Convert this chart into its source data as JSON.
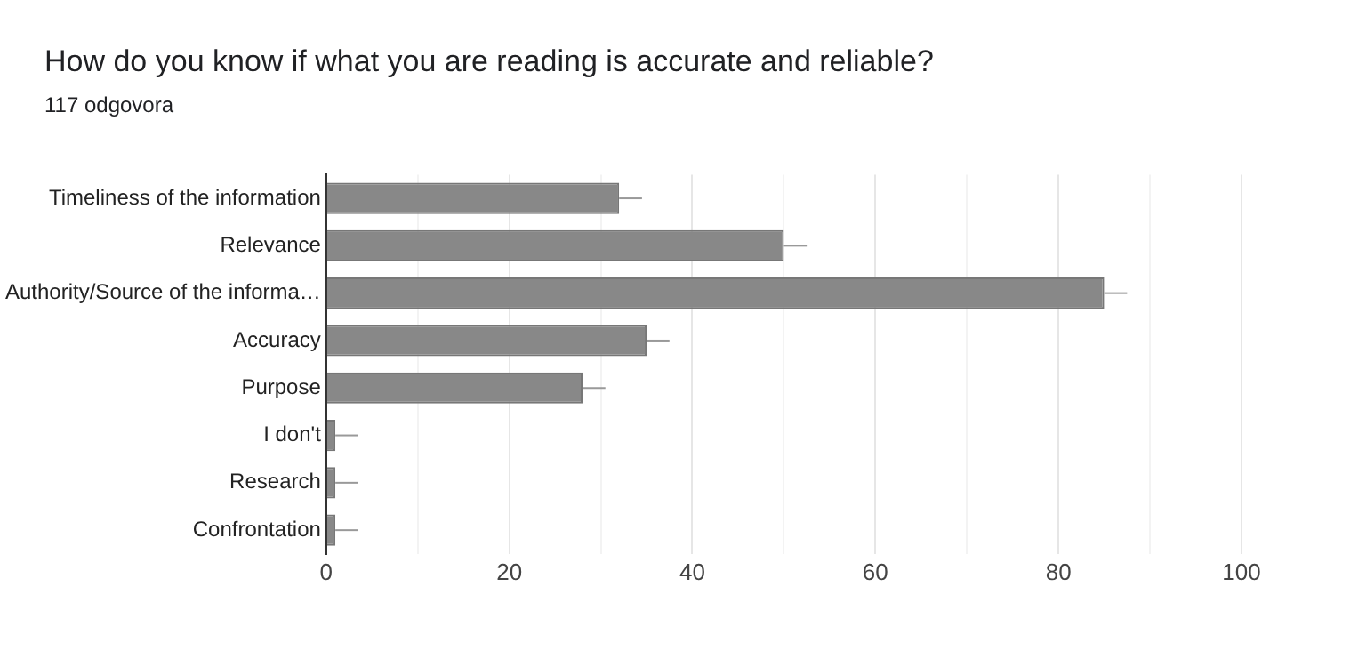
{
  "chart_data": {
    "type": "bar",
    "title": "How do you know if what you are reading is accurate and reliable?",
    "subtitle": "117 odgovora",
    "orientation": "horizontal",
    "categories": [
      "Timeliness of the information",
      "Relevance",
      "Authority/Source of the informa…",
      "Accuracy",
      "Purpose",
      "I don't",
      "Research",
      "Confrontation"
    ],
    "values": [
      32,
      50,
      85,
      35,
      28,
      1,
      1,
      1
    ],
    "errors": [
      [
        32,
        34.5
      ],
      [
        50,
        52.5
      ],
      [
        85,
        87.5
      ],
      [
        35,
        37.5
      ],
      [
        28,
        30.5
      ],
      [
        1,
        3.5
      ],
      [
        1,
        3.5
      ],
      [
        1,
        3.5
      ]
    ],
    "color": "#888888",
    "xlim": [
      0,
      100
    ],
    "xticks": [
      0,
      {
        "value": 10,
        "label": null
      },
      20,
      {
        "value": 30,
        "label": null
      },
      40,
      {
        "value": 50,
        "label": null
      },
      60,
      {
        "value": 70,
        "label": null
      },
      80,
      {
        "value": 90,
        "label": null
      },
      100
    ],
    "grid": "x",
    "legend": false
  }
}
